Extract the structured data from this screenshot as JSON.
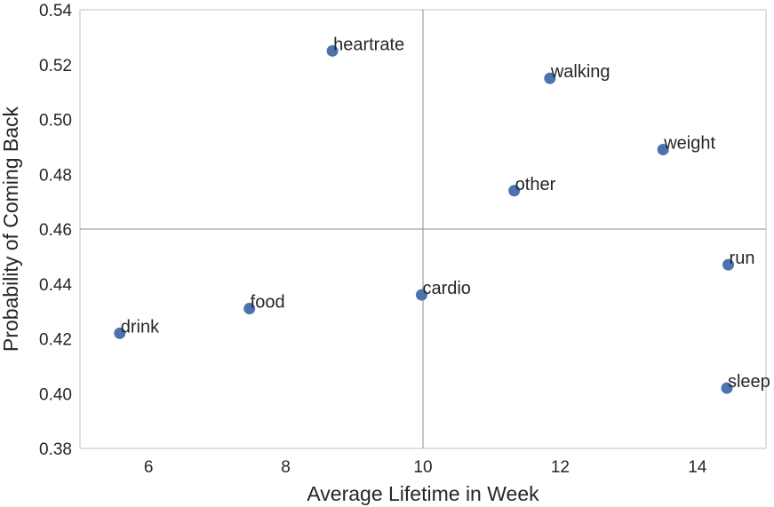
{
  "chart_data": {
    "type": "scatter",
    "title": "",
    "xlabel": "Average Lifetime in Week",
    "ylabel": "Probability of Coming Back",
    "xlim": [
      5,
      15
    ],
    "ylim": [
      0.38,
      0.54
    ],
    "xticks": [
      6,
      8,
      10,
      12,
      14
    ],
    "xtick_labels": [
      "6",
      "8",
      "10",
      "12",
      "14"
    ],
    "yticks": [
      0.38,
      0.4,
      0.42,
      0.44,
      0.46,
      0.48,
      0.5,
      0.52,
      0.54
    ],
    "ytick_labels": [
      "0.38",
      "0.40",
      "0.42",
      "0.44",
      "0.46",
      "0.48",
      "0.50",
      "0.52",
      "0.54"
    ],
    "grid": false,
    "reference_lines": {
      "x": 10,
      "y": 0.46
    },
    "marker_color": "#4c72b0",
    "points": [
      {
        "label": "heartrate",
        "x": 8.68,
        "y": 0.525
      },
      {
        "label": "walking",
        "x": 11.85,
        "y": 0.515
      },
      {
        "label": "weight",
        "x": 13.5,
        "y": 0.489
      },
      {
        "label": "other",
        "x": 11.33,
        "y": 0.474
      },
      {
        "label": "run",
        "x": 14.45,
        "y": 0.447
      },
      {
        "label": "cardio",
        "x": 9.98,
        "y": 0.436
      },
      {
        "label": "food",
        "x": 7.47,
        "y": 0.431
      },
      {
        "label": "drink",
        "x": 5.58,
        "y": 0.422
      },
      {
        "label": "sleep",
        "x": 14.43,
        "y": 0.402
      }
    ]
  }
}
